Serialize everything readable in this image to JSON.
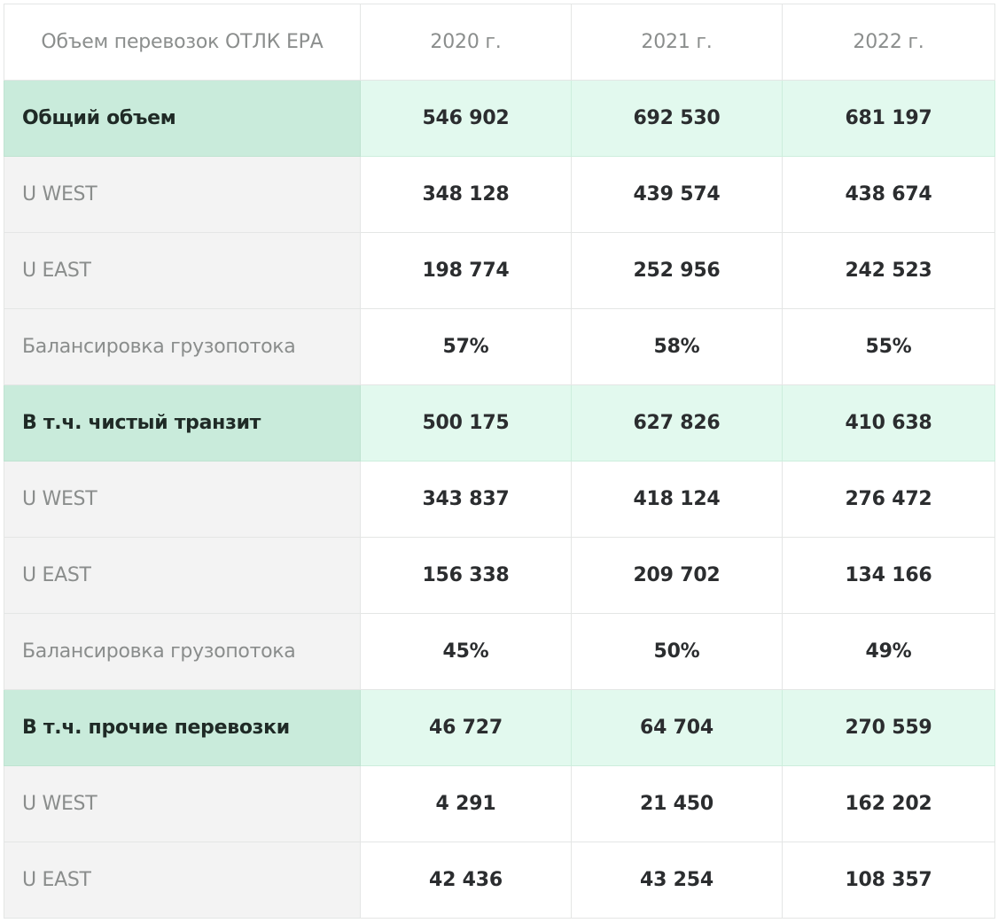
{
  "header": {
    "title": "Объем перевозок ОТЛК ЕРА",
    "years": [
      "2020 г.",
      "2021 г.",
      "2022 г."
    ]
  },
  "rows": [
    {
      "type": "group",
      "label": "Общий объем",
      "values": [
        "546 902",
        "692 530",
        "681 197"
      ]
    },
    {
      "type": "sub",
      "label": "U WEST",
      "values": [
        "348 128",
        "439 574",
        "438 674"
      ]
    },
    {
      "type": "sub",
      "label": "U EAST",
      "values": [
        "198 774",
        "252 956",
        "242 523"
      ]
    },
    {
      "type": "sub",
      "label": "Балансировка грузопотока",
      "values": [
        "57%",
        "58%",
        "55%"
      ]
    },
    {
      "type": "group",
      "label": "В т.ч. чистый транзит",
      "values": [
        "500 175",
        "627 826",
        "410 638"
      ]
    },
    {
      "type": "sub",
      "label": "U WEST",
      "values": [
        "343 837",
        "418 124",
        "276 472"
      ]
    },
    {
      "type": "sub",
      "label": "U EAST",
      "values": [
        "156 338",
        "209 702",
        "134 166"
      ]
    },
    {
      "type": "sub",
      "label": "Балансировка грузопотока",
      "values": [
        "45%",
        "50%",
        "49%"
      ]
    },
    {
      "type": "group",
      "label": "В т.ч. прочие перевозки",
      "values": [
        "46 727",
        "64 704",
        "270 559"
      ]
    },
    {
      "type": "sub",
      "label": "U WEST",
      "values": [
        "4 291",
        "21 450",
        "162 202"
      ]
    },
    {
      "type": "sub",
      "label": "U EAST",
      "values": [
        "42 436",
        "43 254",
        "108 357"
      ]
    }
  ],
  "colors": {
    "group_label_bg": "#c9ebdb",
    "group_value_bg": "#e2f9ee",
    "sub_label_bg": "#f3f3f3",
    "border": "#e4e6e5",
    "muted_text": "#8a8d8c",
    "value_text": "#2b2d2f"
  }
}
